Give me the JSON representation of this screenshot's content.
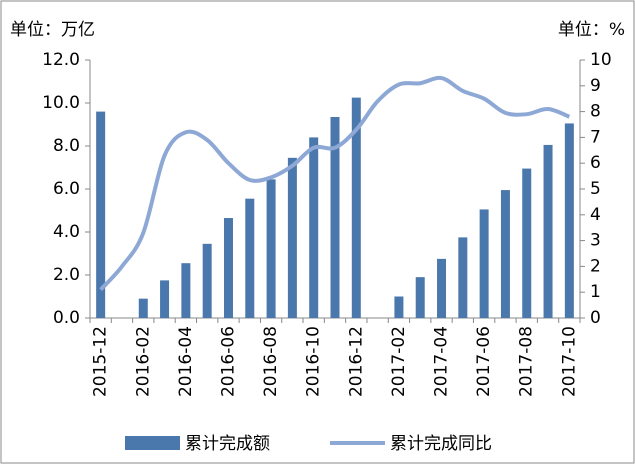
{
  "chart_data": {
    "type": "bar-line",
    "y_unit_label": "单位：万亿",
    "y2_unit_label": "单位：%",
    "categories": [
      "2015-12",
      null,
      "2016-02",
      null,
      "2016-04",
      null,
      "2016-06",
      null,
      "2016-08",
      null,
      "2016-10",
      null,
      "2016-12",
      null,
      "2017-02",
      null,
      "2017-04",
      null,
      "2017-06",
      null,
      "2017-08",
      null,
      "2017-10"
    ],
    "series": [
      {
        "name": "累计完成额",
        "type": "bar",
        "color": "#4a78ad",
        "values": [
          9.6,
          null,
          0.9,
          1.75,
          2.55,
          3.45,
          4.65,
          5.55,
          6.45,
          7.45,
          8.4,
          9.35,
          10.25,
          null,
          1.0,
          1.9,
          2.75,
          3.75,
          5.05,
          5.95,
          6.95,
          8.05,
          9.05
        ]
      },
      {
        "name": "累计完成同比",
        "type": "line",
        "axis": "y2",
        "color": "#8ea8d6",
        "values": [
          1.1,
          2.0,
          3.3,
          6.3,
          7.2,
          6.9,
          6.0,
          5.35,
          5.45,
          5.9,
          6.6,
          6.6,
          7.3,
          8.4,
          9.05,
          9.1,
          9.3,
          8.8,
          8.5,
          7.95,
          7.9,
          8.1,
          7.8
        ]
      }
    ],
    "ylim": [
      0,
      12
    ],
    "yticks": [
      {
        "value": 0,
        "label": "0.0"
      },
      {
        "value": 2,
        "label": "2.0"
      },
      {
        "value": 4,
        "label": "4.0"
      },
      {
        "value": 6,
        "label": "6.0"
      },
      {
        "value": 8,
        "label": "8.0"
      },
      {
        "value": 10,
        "label": "10.0"
      },
      {
        "value": 12,
        "label": "12.0"
      }
    ],
    "y2lim": [
      0,
      10
    ],
    "y2ticks": [
      0,
      1,
      2,
      3,
      4,
      5,
      6,
      7,
      8,
      9,
      10
    ],
    "legend": "bottom"
  }
}
